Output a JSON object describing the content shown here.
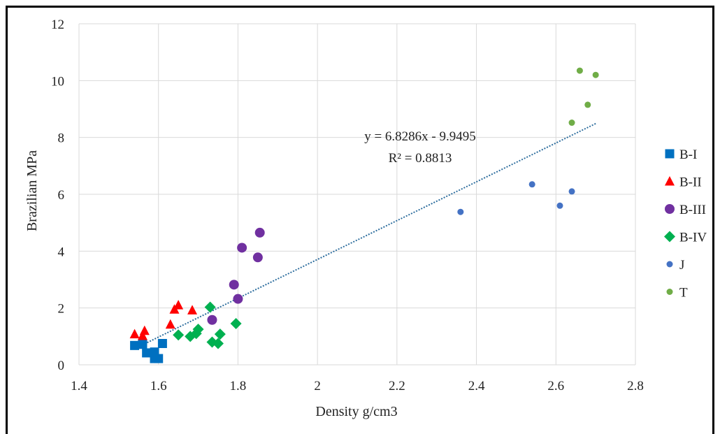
{
  "chart_data": {
    "type": "scatter",
    "xlabel": "Density g/cm3",
    "ylabel": "Brazilian MPa",
    "xlim": [
      1.4,
      2.8
    ],
    "ylim": [
      0,
      12
    ],
    "x_ticks": [
      "1.4",
      "1.6",
      "1.8",
      "2",
      "2.2",
      "2.4",
      "2.6",
      "2.8"
    ],
    "y_ticks": [
      "0",
      "2",
      "4",
      "6",
      "8",
      "10",
      "12"
    ],
    "grid": true,
    "legend_position": "right",
    "series": [
      {
        "name": "B-I",
        "marker": "square",
        "color": "#0070C0",
        "points": [
          [
            1.54,
            0.68
          ],
          [
            1.56,
            0.72
          ],
          [
            1.57,
            0.42
          ],
          [
            1.59,
            0.45
          ],
          [
            1.59,
            0.22
          ],
          [
            1.6,
            0.22
          ],
          [
            1.61,
            0.75
          ]
        ]
      },
      {
        "name": "B-II",
        "marker": "triangle",
        "color": "#FF0000",
        "points": [
          [
            1.54,
            1.08
          ],
          [
            1.56,
            1.02
          ],
          [
            1.565,
            1.2
          ],
          [
            1.63,
            1.42
          ],
          [
            1.64,
            1.95
          ],
          [
            1.65,
            2.1
          ],
          [
            1.685,
            1.92
          ]
        ]
      },
      {
        "name": "B-III",
        "marker": "circle",
        "color": "#7030A0",
        "points": [
          [
            1.735,
            1.58
          ],
          [
            1.79,
            2.82
          ],
          [
            1.8,
            2.32
          ],
          [
            1.81,
            4.12
          ],
          [
            1.85,
            3.78
          ],
          [
            1.855,
            4.65
          ]
        ]
      },
      {
        "name": "B-IV",
        "marker": "diamond",
        "color": "#00B050",
        "points": [
          [
            1.65,
            1.05
          ],
          [
            1.68,
            1.0
          ],
          [
            1.695,
            1.1
          ],
          [
            1.7,
            1.25
          ],
          [
            1.73,
            2.03
          ],
          [
            1.735,
            0.8
          ],
          [
            1.75,
            0.75
          ],
          [
            1.755,
            1.08
          ],
          [
            1.795,
            1.45
          ]
        ]
      },
      {
        "name": "J",
        "marker": "dot",
        "color": "#4472C4",
        "points": [
          [
            2.36,
            5.38
          ],
          [
            2.54,
            6.35
          ],
          [
            2.61,
            5.6
          ],
          [
            2.64,
            6.1
          ]
        ]
      },
      {
        "name": "T",
        "marker": "dot",
        "color": "#70AD47",
        "points": [
          [
            2.64,
            8.52
          ],
          [
            2.66,
            10.35
          ],
          [
            2.68,
            9.15
          ],
          [
            2.7,
            10.2
          ]
        ]
      }
    ],
    "trendline": {
      "slope": 6.8286,
      "intercept": -9.9495,
      "x_range": [
        1.54,
        2.7
      ],
      "color": "#2E6E9E"
    },
    "annotations": {
      "equation": "y = 6.8286x - 9.9495",
      "r_squared": "R² = 0.8813"
    }
  }
}
